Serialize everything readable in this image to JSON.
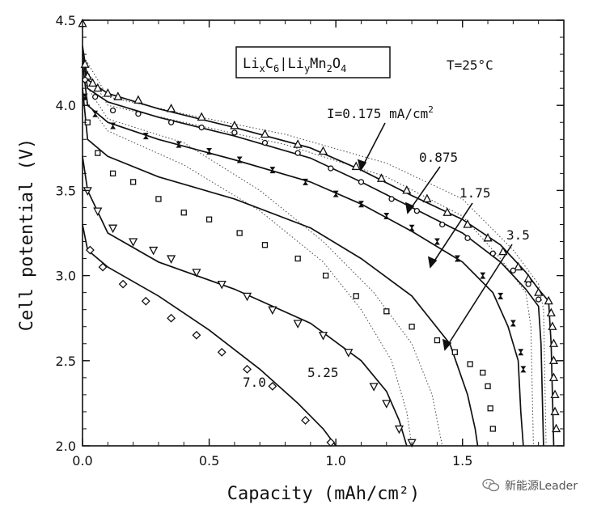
{
  "chart_data": {
    "type": "line",
    "title": "",
    "xlabel": "Capacity (mAh/cm²)",
    "ylabel": "Cell potential (V)",
    "xlim": [
      0.0,
      1.9
    ],
    "ylim": [
      2.0,
      4.5
    ],
    "x_ticks": [
      "0.0",
      "0.5",
      "1.0",
      "1.5"
    ],
    "y_ticks": [
      "2.0",
      "2.5",
      "3.0",
      "3.5",
      "4.0",
      "4.5"
    ],
    "cell_label": "LixC6|LiyMn2O4",
    "cell_label_parts": {
      "a": "Li",
      "a_sub": "x",
      "b": "C",
      "b_sub": "6",
      "sep": "|",
      "c": "Li",
      "c_sub": "y",
      "d": "Mn",
      "d_sub": "2",
      "e": "O",
      "e_sub": "4"
    },
    "temperature_label": "T=25°C",
    "current_labels": [
      {
        "text": "I=0.175 mA/cm²",
        "base": "I=0.175 mA/cm",
        "sup": "2"
      },
      {
        "text": "0.875"
      },
      {
        "text": "1.75"
      },
      {
        "text": "3.5"
      },
      {
        "text": "5.25"
      },
      {
        "text": "7.0"
      }
    ],
    "series": [
      {
        "current": 0.175,
        "marker": "triangle-up",
        "model": [
          [
            0,
            4.35
          ],
          [
            0.02,
            4.15
          ],
          [
            0.1,
            4.07
          ],
          [
            0.3,
            3.98
          ],
          [
            0.6,
            3.87
          ],
          [
            0.9,
            3.75
          ],
          [
            1.1,
            3.62
          ],
          [
            1.3,
            3.47
          ],
          [
            1.5,
            3.33
          ],
          [
            1.65,
            3.18
          ],
          [
            1.75,
            3.02
          ],
          [
            1.8,
            2.92
          ],
          [
            1.84,
            2.85
          ],
          [
            1.85,
            2.6
          ],
          [
            1.86,
            2.0
          ]
        ],
        "points": [
          [
            0.0,
            4.48
          ],
          [
            0.01,
            4.24
          ],
          [
            0.02,
            4.17
          ],
          [
            0.04,
            4.13
          ],
          [
            0.06,
            4.1
          ],
          [
            0.1,
            4.07
          ],
          [
            0.14,
            4.05
          ],
          [
            0.22,
            4.03
          ],
          [
            0.35,
            3.98
          ],
          [
            0.47,
            3.93
          ],
          [
            0.6,
            3.88
          ],
          [
            0.72,
            3.83
          ],
          [
            0.85,
            3.77
          ],
          [
            0.95,
            3.73
          ],
          [
            1.08,
            3.64
          ],
          [
            1.18,
            3.57
          ],
          [
            1.28,
            3.5
          ],
          [
            1.36,
            3.45
          ],
          [
            1.44,
            3.37
          ],
          [
            1.52,
            3.3
          ],
          [
            1.6,
            3.22
          ],
          [
            1.66,
            3.14
          ],
          [
            1.72,
            3.05
          ],
          [
            1.76,
            2.98
          ],
          [
            1.8,
            2.9
          ],
          [
            1.84,
            2.85
          ],
          [
            1.85,
            2.78
          ],
          [
            1.855,
            2.7
          ],
          [
            1.86,
            2.6
          ],
          [
            1.86,
            2.5
          ],
          [
            1.86,
            2.4
          ],
          [
            1.865,
            2.3
          ],
          [
            1.865,
            2.2
          ],
          [
            1.87,
            2.1
          ]
        ]
      },
      {
        "current": 0.875,
        "marker": "circle",
        "model": [
          [
            0,
            4.3
          ],
          [
            0.02,
            4.1
          ],
          [
            0.1,
            4.02
          ],
          [
            0.3,
            3.93
          ],
          [
            0.6,
            3.82
          ],
          [
            0.9,
            3.69
          ],
          [
            1.1,
            3.55
          ],
          [
            1.3,
            3.4
          ],
          [
            1.5,
            3.25
          ],
          [
            1.65,
            3.08
          ],
          [
            1.75,
            2.92
          ],
          [
            1.8,
            2.82
          ],
          [
            1.81,
            2.6
          ],
          [
            1.82,
            2.0
          ]
        ],
        "points": [
          [
            0.01,
            4.15
          ],
          [
            0.05,
            4.05
          ],
          [
            0.12,
            3.97
          ],
          [
            0.22,
            3.95
          ],
          [
            0.35,
            3.9
          ],
          [
            0.47,
            3.87
          ],
          [
            0.6,
            3.84
          ],
          [
            0.72,
            3.78
          ],
          [
            0.85,
            3.72
          ],
          [
            0.98,
            3.63
          ],
          [
            1.1,
            3.55
          ],
          [
            1.22,
            3.45
          ],
          [
            1.32,
            3.38
          ],
          [
            1.42,
            3.3
          ],
          [
            1.52,
            3.22
          ],
          [
            1.62,
            3.13
          ],
          [
            1.7,
            3.03
          ],
          [
            1.76,
            2.95
          ],
          [
            1.8,
            2.86
          ]
        ]
      },
      {
        "current": 1.75,
        "marker": "hourglass",
        "model": [
          [
            0,
            4.25
          ],
          [
            0.02,
            4.0
          ],
          [
            0.1,
            3.9
          ],
          [
            0.3,
            3.8
          ],
          [
            0.6,
            3.68
          ],
          [
            0.9,
            3.55
          ],
          [
            1.1,
            3.42
          ],
          [
            1.3,
            3.26
          ],
          [
            1.5,
            3.08
          ],
          [
            1.62,
            2.9
          ],
          [
            1.68,
            2.7
          ],
          [
            1.72,
            2.5
          ],
          [
            1.73,
            2.2
          ],
          [
            1.74,
            2.0
          ]
        ],
        "points": [
          [
            0.01,
            4.05
          ],
          [
            0.05,
            3.95
          ],
          [
            0.12,
            3.88
          ],
          [
            0.25,
            3.82
          ],
          [
            0.38,
            3.77
          ],
          [
            0.5,
            3.73
          ],
          [
            0.62,
            3.68
          ],
          [
            0.75,
            3.62
          ],
          [
            0.88,
            3.55
          ],
          [
            1.0,
            3.48
          ],
          [
            1.1,
            3.42
          ],
          [
            1.2,
            3.35
          ],
          [
            1.3,
            3.28
          ],
          [
            1.4,
            3.2
          ],
          [
            1.48,
            3.1
          ],
          [
            1.58,
            3.0
          ],
          [
            1.65,
            2.88
          ],
          [
            1.7,
            2.72
          ],
          [
            1.73,
            2.55
          ],
          [
            1.74,
            2.45
          ]
        ]
      },
      {
        "current": 3.5,
        "marker": "square",
        "model": [
          [
            0,
            4.1
          ],
          [
            0.02,
            3.8
          ],
          [
            0.1,
            3.7
          ],
          [
            0.3,
            3.58
          ],
          [
            0.6,
            3.45
          ],
          [
            0.9,
            3.28
          ],
          [
            1.1,
            3.1
          ],
          [
            1.3,
            2.88
          ],
          [
            1.45,
            2.6
          ],
          [
            1.52,
            2.3
          ],
          [
            1.55,
            2.1
          ],
          [
            1.56,
            2.0
          ]
        ],
        "points": [
          [
            0.02,
            3.9
          ],
          [
            0.06,
            3.72
          ],
          [
            0.12,
            3.6
          ],
          [
            0.2,
            3.55
          ],
          [
            0.3,
            3.45
          ],
          [
            0.4,
            3.37
          ],
          [
            0.5,
            3.33
          ],
          [
            0.62,
            3.25
          ],
          [
            0.72,
            3.18
          ],
          [
            0.85,
            3.1
          ],
          [
            0.96,
            3.0
          ],
          [
            1.08,
            2.88
          ],
          [
            1.2,
            2.79
          ],
          [
            1.3,
            2.7
          ],
          [
            1.4,
            2.62
          ],
          [
            1.47,
            2.55
          ],
          [
            1.53,
            2.48
          ],
          [
            1.58,
            2.43
          ],
          [
            1.6,
            2.35
          ],
          [
            1.61,
            2.22
          ],
          [
            1.62,
            2.1
          ]
        ]
      },
      {
        "current": 5.25,
        "marker": "triangle-down",
        "model": [
          [
            0,
            3.7
          ],
          [
            0.02,
            3.5
          ],
          [
            0.1,
            3.25
          ],
          [
            0.3,
            3.08
          ],
          [
            0.6,
            2.92
          ],
          [
            0.9,
            2.72
          ],
          [
            1.1,
            2.5
          ],
          [
            1.2,
            2.32
          ],
          [
            1.25,
            2.15
          ],
          [
            1.28,
            2.0
          ]
        ],
        "points": [
          [
            0.02,
            3.5
          ],
          [
            0.06,
            3.38
          ],
          [
            0.12,
            3.28
          ],
          [
            0.2,
            3.2
          ],
          [
            0.28,
            3.15
          ],
          [
            0.35,
            3.1
          ],
          [
            0.45,
            3.02
          ],
          [
            0.55,
            2.95
          ],
          [
            0.65,
            2.88
          ],
          [
            0.75,
            2.8
          ],
          [
            0.85,
            2.72
          ],
          [
            0.95,
            2.65
          ],
          [
            1.05,
            2.55
          ],
          [
            1.15,
            2.35
          ],
          [
            1.2,
            2.25
          ],
          [
            1.25,
            2.1
          ],
          [
            1.3,
            2.02
          ]
        ]
      },
      {
        "current": 7.0,
        "marker": "diamond",
        "model": [
          [
            0,
            3.3
          ],
          [
            0.02,
            3.15
          ],
          [
            0.1,
            3.05
          ],
          [
            0.3,
            2.88
          ],
          [
            0.5,
            2.68
          ],
          [
            0.7,
            2.45
          ],
          [
            0.85,
            2.25
          ],
          [
            0.95,
            2.1
          ],
          [
            1.0,
            2.0
          ]
        ],
        "points": [
          [
            0.03,
            3.15
          ],
          [
            0.08,
            3.05
          ],
          [
            0.16,
            2.95
          ],
          [
            0.25,
            2.85
          ],
          [
            0.35,
            2.75
          ],
          [
            0.45,
            2.65
          ],
          [
            0.55,
            2.55
          ],
          [
            0.65,
            2.45
          ],
          [
            0.75,
            2.35
          ],
          [
            0.88,
            2.15
          ],
          [
            0.98,
            2.02
          ]
        ]
      }
    ],
    "dotted_curves": [
      [
        [
          0,
          4.3
        ],
        [
          0.1,
          4.05
        ],
        [
          0.4,
          3.95
        ],
        [
          0.8,
          3.83
        ],
        [
          1.2,
          3.66
        ],
        [
          1.5,
          3.45
        ],
        [
          1.7,
          3.15
        ],
        [
          1.8,
          2.95
        ],
        [
          1.82,
          2.8
        ],
        [
          1.83,
          2.0
        ]
      ],
      [
        [
          0,
          4.25
        ],
        [
          0.1,
          4.0
        ],
        [
          0.4,
          3.9
        ],
        [
          0.8,
          3.77
        ],
        [
          1.2,
          3.58
        ],
        [
          1.5,
          3.35
        ],
        [
          1.65,
          3.1
        ],
        [
          1.75,
          2.9
        ],
        [
          1.77,
          2.7
        ],
        [
          1.78,
          2.0
        ]
      ],
      [
        [
          0,
          4.15
        ],
        [
          0.1,
          3.92
        ],
        [
          0.4,
          3.78
        ],
        [
          0.7,
          3.5
        ],
        [
          0.95,
          3.2
        ],
        [
          1.15,
          2.9
        ],
        [
          1.3,
          2.6
        ],
        [
          1.38,
          2.3
        ],
        [
          1.42,
          2.0
        ]
      ],
      [
        [
          0,
          4.05
        ],
        [
          0.1,
          3.85
        ],
        [
          0.4,
          3.65
        ],
        [
          0.7,
          3.38
        ],
        [
          0.95,
          3.08
        ],
        [
          1.1,
          2.8
        ],
        [
          1.22,
          2.5
        ],
        [
          1.28,
          2.2
        ],
        [
          1.3,
          2.0
        ]
      ]
    ],
    "legend": "none",
    "grid": false
  },
  "watermark": {
    "text": "新能源Leader",
    "icon": "wechat-icon"
  }
}
